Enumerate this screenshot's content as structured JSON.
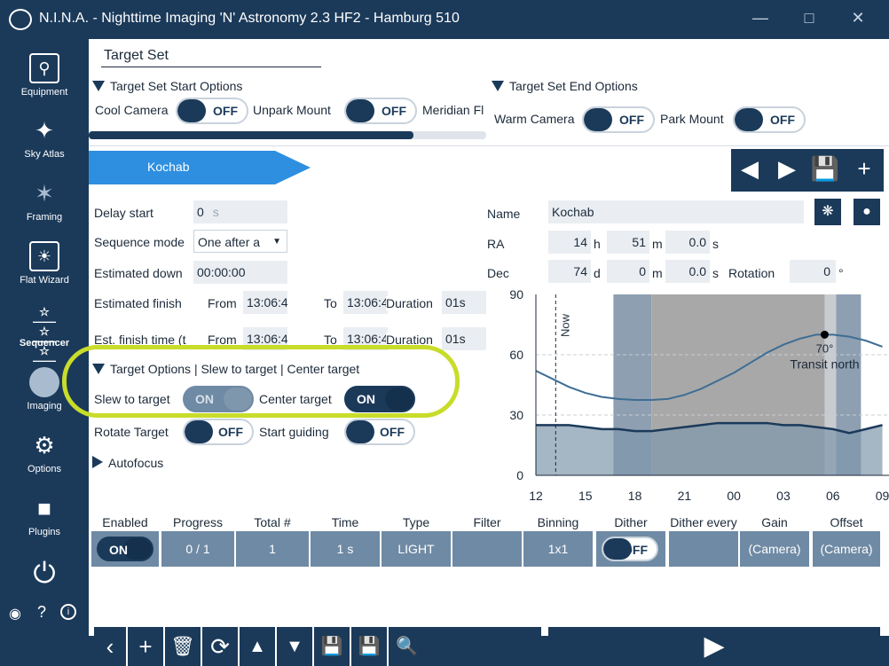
{
  "window": {
    "title": "N.I.N.A. - Nighttime Imaging 'N' Astronomy 2.3 HF2   -  Hamburg 510"
  },
  "sidebar": {
    "items": [
      {
        "label": "Equipment"
      },
      {
        "label": "Sky Atlas"
      },
      {
        "label": "Framing"
      },
      {
        "label": "Flat Wizard"
      },
      {
        "label": "Sequencer"
      },
      {
        "label": "Imaging"
      },
      {
        "label": "Options"
      },
      {
        "label": "Plugins"
      }
    ]
  },
  "tab": {
    "label": "Target Set"
  },
  "start_options": {
    "header": "Target Set Start Options",
    "cool_camera": "Cool Camera",
    "cool_camera_value": "OFF",
    "unpark_mount": "Unpark Mount",
    "unpark_mount_value": "OFF",
    "meridian": "Meridian Fl"
  },
  "end_options": {
    "header": "Target Set End Options",
    "warm_camera": "Warm Camera",
    "warm_camera_value": "OFF",
    "park_mount": "Park Mount",
    "park_mount_value": "OFF"
  },
  "target": {
    "name_tab": "Kochab"
  },
  "fields": {
    "delay_start": "Delay start",
    "delay_value": "0",
    "delay_unit": "s",
    "sequence_mode": "Sequence mode",
    "sequence_mode_value": "One after a",
    "estimated_down": "Estimated down",
    "estimated_down_value": "00:00:00",
    "estimated_finish": "Estimated finish",
    "from": "From",
    "to": "To",
    "from_value": "13:06:4",
    "to_value": "13:06:4",
    "duration": "Duration",
    "duration_value": "01s",
    "est_finish_time": "Est. finish time (t",
    "from2": "From",
    "to2": "To",
    "from2_value": "13:06:4",
    "to2_value": "13:06:4",
    "duration2": "Duration",
    "duration2_value": "01s"
  },
  "coords": {
    "name_label": "Name",
    "name_value": "Kochab",
    "ra_label": "RA",
    "ra_h": "14",
    "ra_h_unit": "h",
    "ra_m": "51",
    "ra_m_unit": "m",
    "ra_s": "0.0",
    "ra_s_unit": "s",
    "dec_label": "Dec",
    "dec_d": "74",
    "dec_d_unit": "d",
    "dec_m": "0",
    "dec_m_unit": "m",
    "dec_s": "0.0",
    "dec_s_unit": "s",
    "rotation_label": "Rotation",
    "rotation_value": "0",
    "rotation_unit": "°"
  },
  "target_options": {
    "header": "Target Options | Slew to target | Center target",
    "slew": "Slew to target",
    "slew_value": "ON",
    "center": "Center target",
    "center_value": "ON",
    "rotate": "Rotate Target",
    "rotate_value": "OFF",
    "guiding": "Start guiding",
    "guiding_value": "OFF"
  },
  "autofocus": {
    "header": "Autofocus"
  },
  "chart_data": {
    "type": "area",
    "x_ticks": [
      "12",
      "15",
      "18",
      "21",
      "00",
      "03",
      "06",
      "09"
    ],
    "y_ticks": [
      "0",
      "30",
      "60",
      "90"
    ],
    "ylim": [
      0,
      90
    ],
    "now_label": "Now",
    "transit_label": "Transit north",
    "altitude_label": "70°",
    "altitude_x": [
      12,
      13,
      14,
      15,
      16,
      17,
      18,
      19,
      20,
      21,
      22,
      23,
      24,
      25,
      26,
      27,
      28,
      29,
      30,
      31,
      32,
      33
    ],
    "altitude_y": [
      52,
      48,
      44,
      41,
      39,
      38,
      37.5,
      37.5,
      38,
      40,
      43,
      47,
      51,
      56,
      61,
      65,
      68,
      70,
      70,
      69,
      67,
      64
    ],
    "horizon_y": [
      25,
      25,
      25,
      24,
      23,
      23,
      22,
      22,
      23,
      24,
      25,
      26,
      26,
      26,
      26,
      25,
      25,
      24,
      23,
      21,
      23,
      25
    ]
  },
  "table": {
    "headers": [
      "Enabled",
      "Progress",
      "Total #",
      "Time",
      "Type",
      "Filter",
      "Binning",
      "Dither",
      "Dither every",
      "Gain",
      "Offset"
    ],
    "row": {
      "enabled": "ON",
      "progress": "0 / 1",
      "total": "1",
      "time": "1 s",
      "type": "LIGHT",
      "filter": "",
      "binning": "1x1",
      "dither": "OFF",
      "dither_every": "",
      "gain": "(Camera)",
      "offset": "(Camera)"
    }
  },
  "colors": {
    "navy": "#1b3a5a",
    "accent": "#2e8fe0",
    "highlight": "#c8dc2a"
  }
}
